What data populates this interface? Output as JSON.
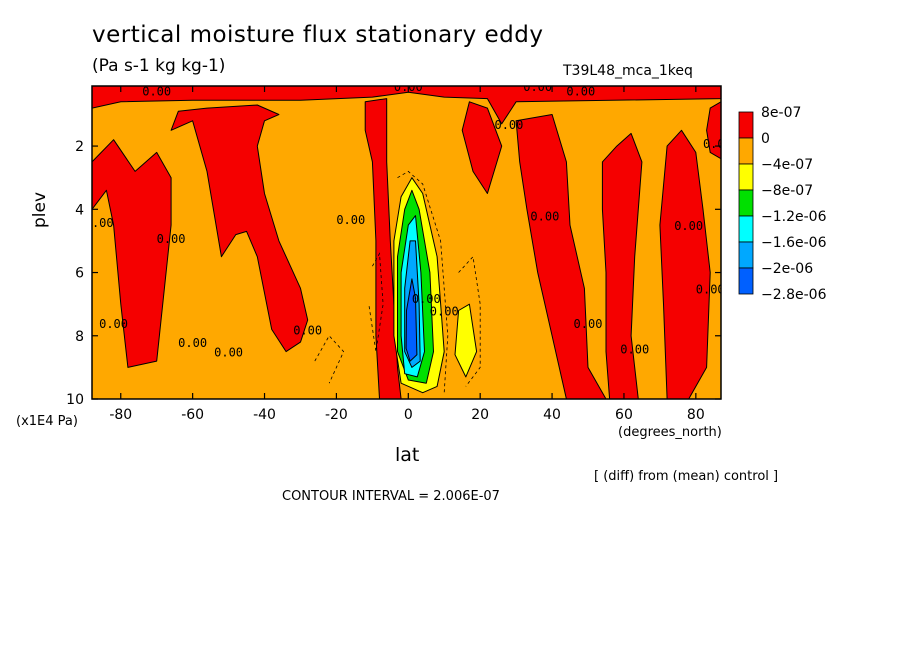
{
  "title": "vertical moisture flux stationary eddy",
  "units_label": "(Pa s-1 kg kg-1)",
  "run_label": "T39L48_mca_1keq",
  "note": "[ (diff) from (mean) control ]",
  "contour_interval": "CONTOUR INTERVAL = 2.006E-07",
  "colors": {
    "red": "#f50000",
    "orange": "#ffa800",
    "yellow": "#ffff00",
    "green": "#00e000",
    "cyan": "#00ffff",
    "lightblue": "#00a8ff",
    "blue": "#0060ff"
  },
  "chart_data": {
    "type": "heatmap",
    "subtype": "contour",
    "title": "vertical moisture flux stationary eddy",
    "xlabel": "lat",
    "x_unit": "(degrees_north)",
    "ylabel": "plev",
    "y_unit": "(x1E4 Pa)",
    "xlim": [
      -88,
      87
    ],
    "ylim": [
      0.1,
      10
    ],
    "y_inverted": true,
    "x_ticks": [
      -80,
      -60,
      -40,
      -20,
      0,
      20,
      40,
      60,
      80
    ],
    "y_ticks": [
      2,
      4,
      6,
      8,
      10
    ],
    "contour_interval": 2.006e-07,
    "contour_label_text": "0.00",
    "colorbar": {
      "labels": [
        "8e-07",
        "0",
        "−4e-07",
        "−8e-07",
        "−1.2e-06",
        "−1.6e-06",
        "−2e-06",
        "−2.8e-06"
      ],
      "colors": [
        "#f50000",
        "#ffa800",
        "#ffff00",
        "#00e000",
        "#00ffff",
        "#00a8ff",
        "#0060ff"
      ]
    },
    "background_region": {
      "color": "#ffa800"
    },
    "regions": [
      {
        "color": "#f50000",
        "polygon": [
          [
            -88,
            0.1
          ],
          [
            87,
            0.1
          ],
          [
            87,
            0.5
          ],
          [
            30,
            0.6
          ],
          [
            26,
            1.3
          ],
          [
            22,
            0.5
          ],
          [
            10,
            0.45
          ],
          [
            0,
            0.3
          ],
          [
            -10,
            0.45
          ],
          [
            -30,
            0.55
          ],
          [
            -60,
            0.55
          ],
          [
            -80,
            0.6
          ],
          [
            -88,
            0.8
          ]
        ]
      },
      {
        "color": "#f50000",
        "polygon": [
          [
            -88,
            4
          ],
          [
            -84,
            3.4
          ],
          [
            -82,
            4.5
          ],
          [
            -80,
            7
          ],
          [
            -78,
            9
          ],
          [
            -70,
            8.8
          ],
          [
            -66,
            4.5
          ],
          [
            -66,
            3
          ],
          [
            -70,
            2.2
          ],
          [
            -76,
            2.8
          ],
          [
            -82,
            1.8
          ],
          [
            -88,
            2.5
          ]
        ]
      },
      {
        "color": "#f50000",
        "polygon": [
          [
            -66,
            1.5
          ],
          [
            -60,
            1.2
          ],
          [
            -56,
            2.8
          ],
          [
            -52,
            5.5
          ],
          [
            -48,
            4.8
          ],
          [
            -45,
            4.7
          ],
          [
            -42,
            5.5
          ],
          [
            -38,
            7.8
          ],
          [
            -34,
            8.5
          ],
          [
            -30,
            8.2
          ],
          [
            -28,
            7.5
          ],
          [
            -30,
            6.5
          ],
          [
            -36,
            5
          ],
          [
            -40,
            3.5
          ],
          [
            -42,
            2
          ],
          [
            -40,
            1.2
          ],
          [
            -36,
            1
          ],
          [
            -42,
            0.7
          ],
          [
            -56,
            0.8
          ],
          [
            -64,
            0.9
          ]
        ]
      },
      {
        "color": "#f50000",
        "polygon": [
          [
            -12,
            0.6
          ],
          [
            -6,
            0.5
          ],
          [
            -6,
            2.5
          ],
          [
            -5,
            5
          ],
          [
            -4,
            7
          ],
          [
            -3,
            9
          ],
          [
            -2,
            10
          ],
          [
            -8,
            10
          ],
          [
            -9,
            8
          ],
          [
            -9,
            5
          ],
          [
            -10,
            2.5
          ],
          [
            -12,
            1.5
          ]
        ]
      },
      {
        "color": "#f50000",
        "polygon": [
          [
            17,
            0.6
          ],
          [
            22,
            0.8
          ],
          [
            26,
            2
          ],
          [
            22,
            3.5
          ],
          [
            18,
            2.8
          ],
          [
            15,
            1.5
          ]
        ]
      },
      {
        "color": "#f50000",
        "polygon": [
          [
            30,
            1.2
          ],
          [
            40,
            1
          ],
          [
            44,
            2.5
          ],
          [
            45,
            4.5
          ],
          [
            49,
            6.5
          ],
          [
            50,
            9
          ],
          [
            55,
            10
          ],
          [
            44,
            10
          ],
          [
            40,
            8
          ],
          [
            36,
            6
          ],
          [
            33,
            4
          ],
          [
            31,
            2.5
          ]
        ]
      },
      {
        "color": "#f50000",
        "polygon": [
          [
            54,
            2.5
          ],
          [
            58,
            2
          ],
          [
            62,
            1.6
          ],
          [
            65,
            2.5
          ],
          [
            63,
            5.5
          ],
          [
            62,
            8
          ],
          [
            64,
            10
          ],
          [
            56,
            10
          ],
          [
            55,
            8.5
          ],
          [
            55,
            6
          ],
          [
            54,
            4
          ]
        ]
      },
      {
        "color": "#f50000",
        "polygon": [
          [
            72,
            2
          ],
          [
            76,
            1.5
          ],
          [
            80,
            2.2
          ],
          [
            82,
            4
          ],
          [
            84,
            6
          ],
          [
            83,
            9
          ],
          [
            78,
            10
          ],
          [
            72,
            10
          ],
          [
            71,
            7
          ],
          [
            70,
            4.5
          ]
        ]
      },
      {
        "color": "#f50000",
        "polygon": [
          [
            84,
            0.8
          ],
          [
            87,
            0.6
          ],
          [
            87,
            2.4
          ],
          [
            84,
            2.2
          ],
          [
            83,
            1.5
          ]
        ]
      },
      {
        "color": "#ffff00",
        "polygon": [
          [
            -4,
            5
          ],
          [
            -2,
            3.6
          ],
          [
            1,
            3
          ],
          [
            4,
            3.5
          ],
          [
            8,
            5.5
          ],
          [
            10,
            8.5
          ],
          [
            8,
            9.6
          ],
          [
            4,
            9.8
          ],
          [
            -2,
            9.5
          ],
          [
            -4,
            8
          ]
        ]
      },
      {
        "color": "#ffff00",
        "polygon": [
          [
            14,
            7.2
          ],
          [
            17,
            7
          ],
          [
            19,
            8.5
          ],
          [
            16,
            9.3
          ],
          [
            13,
            8.6
          ]
        ]
      },
      {
        "color": "#00e000",
        "polygon": [
          [
            -3,
            5.5
          ],
          [
            -1,
            4
          ],
          [
            1,
            3.4
          ],
          [
            3,
            4
          ],
          [
            6,
            6
          ],
          [
            7,
            8.5
          ],
          [
            5,
            9.5
          ],
          [
            0,
            9.4
          ],
          [
            -3,
            8.5
          ]
        ]
      },
      {
        "color": "#00ffff",
        "polygon": [
          [
            -2,
            6
          ],
          [
            0,
            4.5
          ],
          [
            2,
            4.2
          ],
          [
            3.5,
            6
          ],
          [
            4.5,
            8.5
          ],
          [
            2.5,
            9.3
          ],
          [
            -1,
            9.2
          ],
          [
            -2,
            8
          ]
        ]
      },
      {
        "color": "#00a8ff",
        "polygon": [
          [
            -1,
            6.5
          ],
          [
            0.5,
            5
          ],
          [
            2,
            5
          ],
          [
            3,
            7
          ],
          [
            3.3,
            8.8
          ],
          [
            1,
            9
          ],
          [
            -1,
            8.5
          ]
        ]
      },
      {
        "color": "#0060ff",
        "polygon": [
          [
            -0.5,
            7.2
          ],
          [
            1,
            6.2
          ],
          [
            2,
            6.8
          ],
          [
            2.4,
            8.6
          ],
          [
            0.5,
            8.8
          ],
          [
            -0.6,
            8.4
          ]
        ]
      }
    ],
    "contour_labels_at": [
      [
        -70,
        0.25
      ],
      [
        0,
        0.1
      ],
      [
        36,
        0.1
      ],
      [
        48,
        0.25
      ],
      [
        28,
        1.3
      ],
      [
        86,
        1.9
      ],
      [
        -86,
        4.4
      ],
      [
        -82,
        7.6
      ],
      [
        -66,
        4.9
      ],
      [
        -60,
        8.2
      ],
      [
        -50,
        8.5
      ],
      [
        -28,
        7.8
      ],
      [
        -16,
        4.3
      ],
      [
        5,
        6.8
      ],
      [
        10,
        7.2
      ],
      [
        38,
        4.2
      ],
      [
        50,
        7.6
      ],
      [
        63,
        8.4
      ],
      [
        78,
        4.5
      ],
      [
        84,
        6.5
      ]
    ]
  }
}
